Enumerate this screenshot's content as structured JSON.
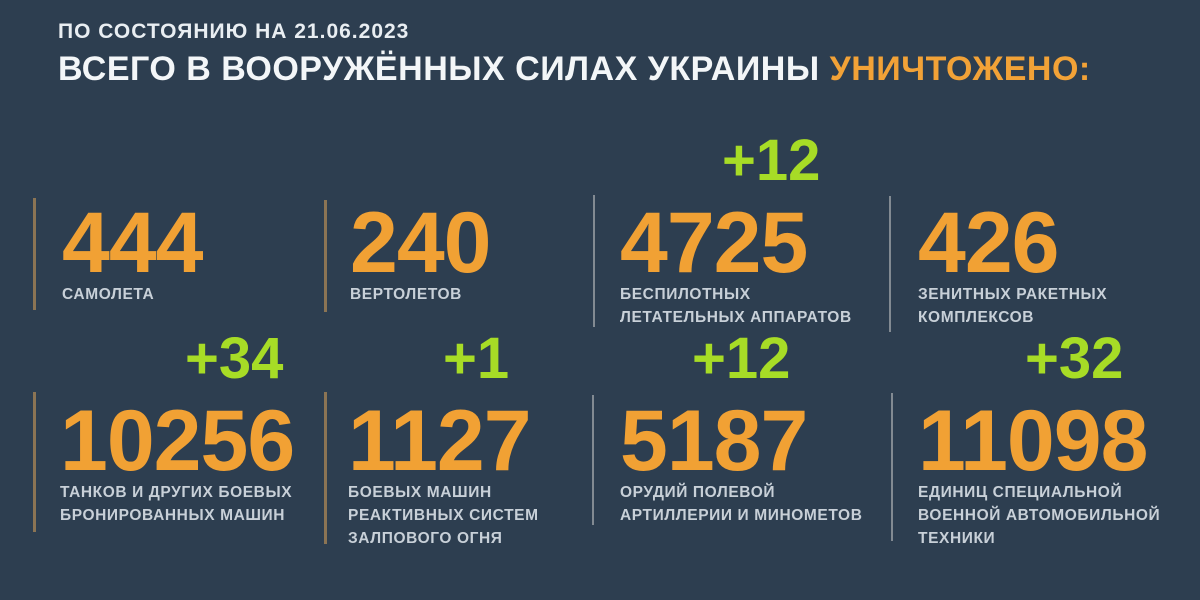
{
  "colors": {
    "background": "#2d3e50",
    "number_orange": "#f1a134",
    "accent_orange": "#f2a237",
    "delta_green": "#a7dc26",
    "headline_white": "#f3f6f8",
    "label_gray": "#c8d0d8",
    "divider_tan": "#8b7454",
    "divider_gray": "#828a92"
  },
  "header": {
    "date_line": "ПО СОСТОЯНИЮ НА 21.06.2023",
    "title_main": "ВСЕГО В ВООРУЖЁННЫХ СИЛАХ УКРАИНЫ ",
    "title_accent": "УНИЧТОЖЕНО:"
  },
  "stats": [
    {
      "id": "aircraft",
      "value": "444",
      "delta": "",
      "label_lines": [
        "САМОЛЕТА"
      ]
    },
    {
      "id": "helicopters",
      "value": "240",
      "delta": "",
      "label_lines": [
        "ВЕРТОЛЕТОВ"
      ]
    },
    {
      "id": "uavs",
      "value": "4725",
      "delta": "+12",
      "label_lines": [
        "БЕСПИЛОТНЫХ",
        "ЛЕТАТЕЛЬНЫХ АППАРАТОВ"
      ]
    },
    {
      "id": "sam-systems",
      "value": "426",
      "delta": "",
      "label_lines": [
        "ЗЕНИТНЫХ РАКЕТНЫХ",
        "КОМПЛЕКСОВ"
      ]
    },
    {
      "id": "tanks",
      "value": "10256",
      "delta": "+34",
      "label_lines": [
        "ТАНКОВ И ДРУГИХ БОЕВЫХ",
        "БРОНИРОВАННЫХ МАШИН"
      ]
    },
    {
      "id": "mlrs",
      "value": "1127",
      "delta": "+1",
      "label_lines": [
        "БОЕВЫХ МАШИН",
        "РЕАКТИВНЫХ СИСТЕМ",
        "ЗАЛПОВОГО ОГНЯ"
      ]
    },
    {
      "id": "artillery",
      "value": "5187",
      "delta": "+12",
      "label_lines": [
        "ОРУДИЙ ПОЛЕВОЙ",
        "АРТИЛЛЕРИИ И МИНОМЕТОВ"
      ]
    },
    {
      "id": "spec-vehicles",
      "value": "11098",
      "delta": "+32",
      "label_lines": [
        "ЕДИНИЦ СПЕЦИАЛЬНОЙ",
        "ВОЕННОЙ АВТОМОБИЛЬНОЙ",
        "ТЕХНИКИ"
      ]
    }
  ]
}
